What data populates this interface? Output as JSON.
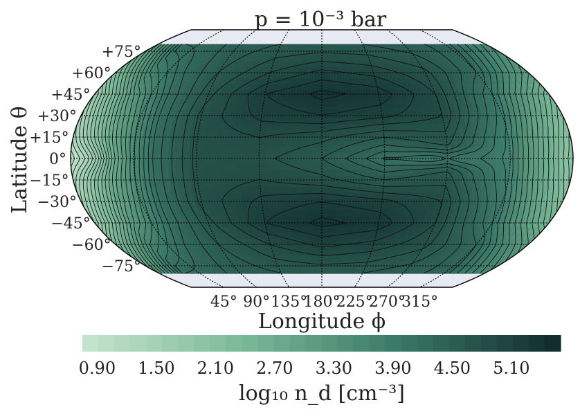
{
  "chart_data": {
    "type": "heatmap",
    "projection": "robinson",
    "title": "p = 10⁻³ bar",
    "xlabel": "Longitude ϕ",
    "ylabel": "Latitude θ",
    "x_ticks": [
      "45°",
      "90°",
      "135°",
      "180°",
      "225°",
      "270°",
      "315°"
    ],
    "y_ticks": [
      "+75°",
      "+60°",
      "+45°",
      "+30°",
      "+15°",
      "0°",
      "−15°",
      "−30°",
      "−45°",
      "−60°",
      "−75°"
    ],
    "xlim": [
      0,
      360
    ],
    "ylim": [
      -90,
      90
    ],
    "grid": true,
    "colorbar": {
      "label": "log₁₀ n_d [cm⁻³]",
      "ticks": [
        "0.90",
        "1.50",
        "2.10",
        "2.70",
        "3.30",
        "3.90",
        "4.50",
        "5.10"
      ],
      "tick_values": [
        0.9,
        1.5,
        2.1,
        2.7,
        3.3,
        3.9,
        4.5,
        5.1
      ],
      "range": [
        0.75,
        5.6
      ],
      "color_low": "#c6e5cf",
      "color_high": "#0f2a2a",
      "placement": "bottom"
    },
    "field": {
      "description_rows_lat": [
        80,
        60,
        45,
        30,
        15,
        0,
        -15,
        -30,
        -45,
        -60,
        -80
      ],
      "lon_samples": [
        0,
        30,
        60,
        90,
        135,
        180,
        225,
        270,
        315,
        360
      ],
      "values": [
        [
          3.1,
          4.3,
          4.4,
          4.5,
          4.6,
          4.6,
          4.6,
          4.5,
          4.4,
          3.6
        ],
        [
          2.3,
          3.7,
          4.3,
          4.6,
          4.9,
          5.1,
          5.0,
          4.8,
          4.3,
          3.1
        ],
        [
          1.6,
          3.2,
          4.2,
          4.7,
          5.2,
          5.4,
          5.3,
          4.9,
          4.0,
          2.5
        ],
        [
          1.4,
          3.0,
          4.2,
          4.8,
          5.1,
          5.2,
          5.1,
          4.9,
          3.9,
          2.2
        ],
        [
          1.2,
          2.9,
          4.2,
          4.8,
          4.9,
          4.8,
          4.6,
          4.7,
          3.8,
          2.0
        ],
        [
          1.0,
          2.8,
          4.2,
          4.8,
          4.8,
          4.6,
          4.2,
          4.6,
          3.8,
          1.9
        ],
        [
          1.2,
          2.9,
          4.2,
          4.8,
          4.9,
          4.8,
          4.6,
          4.7,
          3.8,
          2.0
        ],
        [
          1.4,
          3.0,
          4.2,
          4.8,
          5.1,
          5.2,
          5.1,
          4.9,
          3.9,
          2.2
        ],
        [
          1.6,
          3.2,
          4.2,
          4.7,
          5.2,
          5.4,
          5.3,
          4.9,
          4.0,
          2.5
        ],
        [
          2.3,
          3.7,
          4.3,
          4.6,
          4.9,
          5.1,
          5.0,
          4.8,
          4.3,
          3.1
        ],
        [
          3.1,
          4.3,
          4.4,
          4.5,
          4.6,
          4.6,
          4.6,
          4.5,
          4.4,
          3.6
        ]
      ]
    }
  }
}
